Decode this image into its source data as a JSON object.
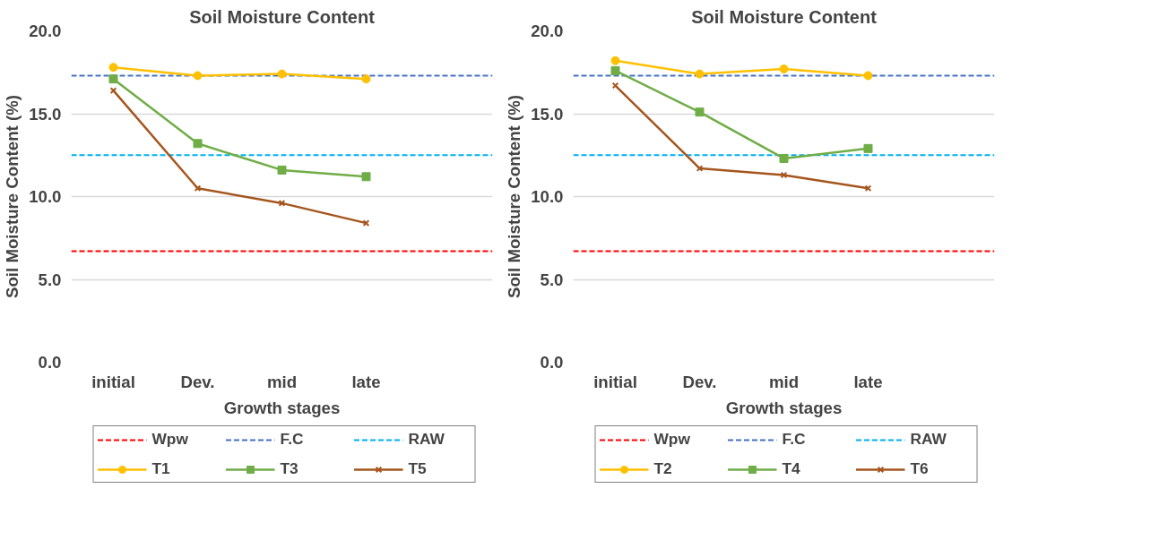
{
  "chart_data": [
    {
      "type": "line",
      "title": "Soil Moisture Content",
      "xlabel": "Growth stages",
      "ylabel": "Soil Moisture Content (%)",
      "categories": [
        "initial",
        "Dev.",
        "mid",
        "late",
        null
      ],
      "ylim": [
        0,
        20
      ],
      "yticks": [
        {
          "value": 0,
          "label": "0.0"
        },
        {
          "value": 5,
          "label": "5.0"
        },
        {
          "value": 10,
          "label": "10.0"
        },
        {
          "value": 15,
          "label": "15.0"
        },
        {
          "value": 20,
          "label": "20.0"
        }
      ],
      "grid": "y",
      "legend": "bottom",
      "line_style": "solid",
      "ref_lines": [
        {
          "axis": "y",
          "value": 6.7,
          "label": "Wpw",
          "color": "#ff0000",
          "line_style": "dashed"
        },
        {
          "axis": "y",
          "value": 17.3,
          "label": "F.C",
          "color": "#4472c4",
          "line_style": "dashed"
        },
        {
          "axis": "y",
          "value": 12.5,
          "label": "RAW",
          "color": "#00b0f0",
          "line_style": "dashed"
        }
      ],
      "series": [
        {
          "name": "T1",
          "color": "#ffc000",
          "marker": "circle",
          "values": [
            17.8,
            17.3,
            17.4,
            17.1,
            null
          ]
        },
        {
          "name": "T3",
          "color": "#70ad47",
          "marker": "square",
          "values": [
            17.1,
            13.2,
            11.6,
            11.2,
            null
          ]
        },
        {
          "name": "T5",
          "color": "#a5561e",
          "marker": "cross",
          "values": [
            16.4,
            10.5,
            9.6,
            8.4,
            null
          ]
        }
      ]
    },
    {
      "type": "line",
      "title": "Soil Moisture Content",
      "xlabel": "Growth stages",
      "ylabel": "Soil Moisture Content (%)",
      "categories": [
        "initial",
        "Dev.",
        "mid",
        "late",
        null
      ],
      "ylim": [
        0,
        20
      ],
      "yticks": [
        {
          "value": 0,
          "label": "0.0"
        },
        {
          "value": 5,
          "label": "5.0"
        },
        {
          "value": 10,
          "label": "10.0"
        },
        {
          "value": 15,
          "label": "15.0"
        },
        {
          "value": 20,
          "label": "20.0"
        }
      ],
      "grid": "y",
      "legend": "bottom",
      "line_style": "solid",
      "ref_lines": [
        {
          "axis": "y",
          "value": 6.7,
          "label": "Wpw",
          "color": "#ff0000",
          "line_style": "dashed"
        },
        {
          "axis": "y",
          "value": 17.3,
          "label": "F.C",
          "color": "#4472c4",
          "line_style": "dashed"
        },
        {
          "axis": "y",
          "value": 12.5,
          "label": "RAW",
          "color": "#00b0f0",
          "line_style": "dashed"
        }
      ],
      "series": [
        {
          "name": "T2",
          "color": "#ffc000",
          "marker": "circle",
          "values": [
            18.2,
            17.4,
            17.7,
            17.3,
            null
          ]
        },
        {
          "name": "T4",
          "color": "#70ad47",
          "marker": "square",
          "values": [
            17.6,
            15.1,
            12.3,
            12.9,
            null
          ]
        },
        {
          "name": "T6",
          "color": "#a5561e",
          "marker": "cross",
          "values": [
            16.7,
            11.7,
            11.3,
            10.5,
            null
          ]
        }
      ]
    }
  ]
}
